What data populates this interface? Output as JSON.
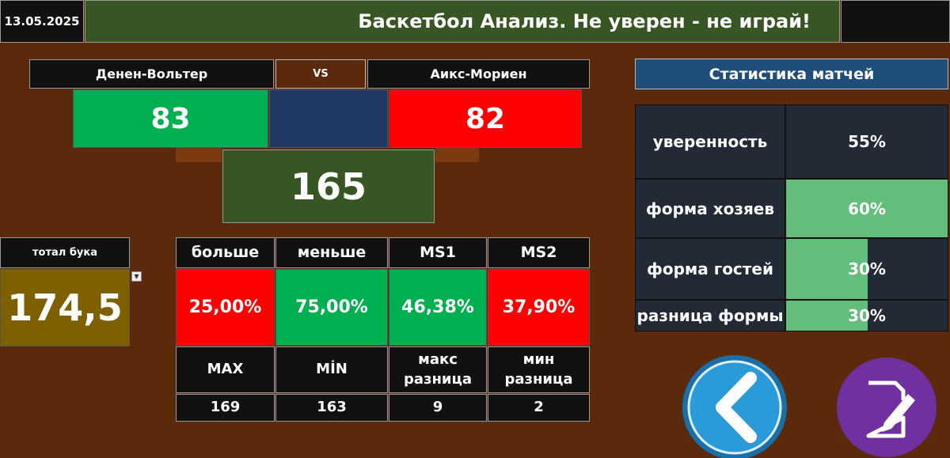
{
  "header": {
    "date": "13.05.2025",
    "title": "Баскетбол Анализ. Не уверен - не играй!"
  },
  "match": {
    "home": "Денен-Вольтер",
    "vs": "VS",
    "away": "Аикс-Мориен",
    "home_score": "83",
    "away_score": "82",
    "total": "165"
  },
  "book_total": {
    "label": "тотал бука",
    "value": "174,5"
  },
  "table": {
    "headers": [
      "больше",
      "меньше",
      "MS1",
      "MS2"
    ],
    "values": [
      "25,00%",
      "75,00%",
      "46,38%",
      "37,90%"
    ],
    "headers2": [
      "MAX",
      "MİN",
      "макс разница",
      "мин разница"
    ],
    "values2": [
      "169",
      "163",
      "9",
      "2"
    ]
  },
  "stats": {
    "title": "Статистика матчей",
    "rows": [
      {
        "label": "уверенность",
        "value": 55,
        "value_label": "55%",
        "bar": false
      },
      {
        "label": "форма хозяев",
        "value": 60,
        "value_label": "60%",
        "bar": true
      },
      {
        "label": "форма гостей",
        "value": 30,
        "value_label": "30%",
        "bar": true
      },
      {
        "label": "разница формы",
        "value": 30,
        "value_label": "30%",
        "bar": true
      }
    ]
  }
}
